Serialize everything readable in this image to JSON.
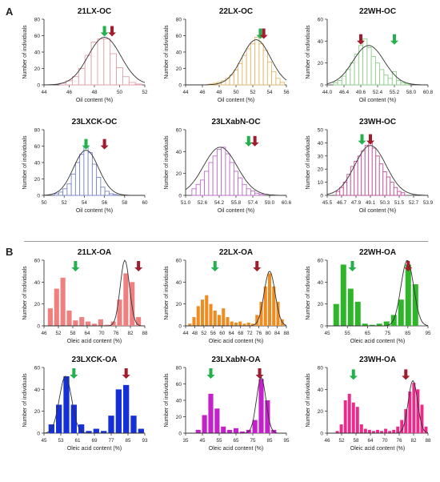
{
  "panels": [
    {
      "letter": "A"
    },
    {
      "letter": "B"
    }
  ],
  "chart_data": [
    {
      "type": "bar",
      "title": "21LX-OC",
      "xlabel": "Oil content (%)",
      "ylabel": "Number of individuals",
      "style": "outline",
      "color": "#e0a0a8",
      "x_ticks": [
        "44",
        "46",
        "48",
        "50",
        "52"
      ],
      "x_min": 44,
      "x_max": 52,
      "bin_width": 0.5,
      "bin_centers": [
        45.5,
        46.0,
        46.5,
        47.0,
        47.5,
        48.0,
        48.5,
        49.0,
        49.5,
        50.0,
        50.5,
        51.0,
        51.5
      ],
      "values": [
        2,
        5,
        10,
        20,
        36,
        52,
        56,
        56,
        38,
        21,
        10,
        3,
        1
      ],
      "ylim": [
        0,
        80
      ],
      "y_ticks": [
        0,
        20,
        40,
        60,
        80
      ],
      "curve": {
        "mean": 48.8,
        "sd": 1.3,
        "peak": 58
      },
      "green_arrow_x": 48.8,
      "red_arrow_x": 49.4
    },
    {
      "type": "bar",
      "title": "22LX-OC",
      "xlabel": "Oil content (%)",
      "ylabel": "Number of individuals",
      "style": "outline",
      "color": "#e3b76a",
      "x_ticks": [
        "44",
        "46",
        "48",
        "50",
        "52",
        "54",
        "56"
      ],
      "x_min": 44,
      "x_max": 56,
      "bin_width": 0.5,
      "bin_centers": [
        47.0,
        47.5,
        48.0,
        48.5,
        49.0,
        49.5,
        50.0,
        50.5,
        51.0,
        51.5,
        52.0,
        52.5,
        53.0,
        53.5,
        54.0,
        54.5,
        55.0,
        55.5
      ],
      "values": [
        1,
        2,
        3,
        5,
        8,
        12,
        18,
        26,
        36,
        44,
        50,
        58,
        50,
        42,
        28,
        16,
        8,
        3
      ],
      "ylim": [
        0,
        80
      ],
      "y_ticks": [
        0,
        20,
        40,
        60,
        80
      ],
      "curve": {
        "mean": 52.4,
        "sd": 1.7,
        "peak": 55
      },
      "green_arrow_x": 52.9,
      "red_arrow_x": 53.3
    },
    {
      "type": "bar",
      "title": "22WH-OC",
      "xlabel": "Oil content (%)",
      "ylabel": "Number of individuals",
      "style": "outline",
      "color": "#8fce8a",
      "x_ticks": [
        "44.0",
        "46.4",
        "48.8",
        "51.2",
        "53.6",
        "56.0",
        "58.4",
        "60.8"
      ],
      "x_ticks_shown": [
        "44.0",
        "46.4",
        "49.6",
        "52.4",
        "55.2",
        "58.0",
        "60.8"
      ],
      "x_min": 44.0,
      "x_max": 60.8,
      "bin_width": 0.7,
      "bin_centers": [
        45.4,
        46.1,
        46.8,
        47.5,
        48.2,
        48.9,
        49.6,
        50.3,
        51.0,
        51.7,
        52.4,
        53.1,
        53.8,
        54.5,
        55.2,
        55.9,
        56.6,
        57.3
      ],
      "values": [
        2,
        4,
        8,
        14,
        20,
        28,
        36,
        42,
        34,
        26,
        20,
        14,
        9,
        6,
        12,
        4,
        2,
        1
      ],
      "ylim": [
        0,
        60
      ],
      "y_ticks": [
        0,
        20,
        40,
        60
      ],
      "curve": {
        "mean": 50.9,
        "sd": 2.6,
        "peak": 36
      },
      "green_arrow_x": 55.2,
      "red_arrow_x": 49.6
    },
    {
      "type": "bar",
      "title": "23LXCK-OC",
      "xlabel": "Oil content (%)",
      "ylabel": "Number of individuals",
      "style": "outline",
      "color": "#7b86c8",
      "x_ticks": [
        "50",
        "52",
        "54",
        "56",
        "58",
        "60"
      ],
      "x_min": 49,
      "x_max": 61,
      "bin_width": 0.5,
      "bin_centers": [
        50.5,
        51.0,
        51.5,
        52.0,
        52.5,
        53.0,
        53.5,
        54.0,
        54.5,
        55.0,
        55.5,
        56.0,
        56.5,
        57.0,
        57.5
      ],
      "values": [
        2,
        4,
        8,
        14,
        26,
        40,
        50,
        60,
        52,
        38,
        22,
        10,
        5,
        2,
        1
      ],
      "ylim": [
        0,
        80
      ],
      "y_ticks": [
        0,
        20,
        40,
        60,
        80
      ],
      "curve": {
        "mean": 54.0,
        "sd": 1.5,
        "peak": 55
      },
      "green_arrow_x": 54.0,
      "red_arrow_x": 56.2
    },
    {
      "type": "bar",
      "title": "23LXabN-OC",
      "xlabel": "Oil content (%)",
      "ylabel": "Number of individuals",
      "style": "outline",
      "color": "#bb6fc9",
      "x_ticks": [
        "51.0",
        "52.6",
        "54.2",
        "55.8",
        "57.4",
        "59.0",
        "60.6"
      ],
      "x_min": 51.0,
      "x_max": 60.6,
      "bin_width": 0.4,
      "bin_centers": [
        51.8,
        52.2,
        52.6,
        53.0,
        53.4,
        53.8,
        54.2,
        54.6,
        55.0,
        55.4,
        55.8,
        56.2,
        56.6,
        57.0,
        57.4,
        57.8,
        58.2
      ],
      "values": [
        6,
        10,
        14,
        22,
        30,
        36,
        42,
        44,
        38,
        30,
        22,
        16,
        10,
        6,
        4,
        2,
        1
      ],
      "ylim": [
        0,
        60
      ],
      "y_ticks": [
        0,
        20,
        40,
        60
      ],
      "curve": {
        "mean": 54.3,
        "sd": 1.6,
        "peak": 44
      },
      "green_arrow_x": 57.0,
      "red_arrow_x": 57.6
    },
    {
      "type": "bar",
      "title": "23WH-OC",
      "xlabel": "Oil content (%)",
      "ylabel": "Number of individuals",
      "style": "outline",
      "color": "#c0509a",
      "x_ticks": [
        "45.5",
        "46.7",
        "47.9",
        "49.1",
        "50.3",
        "51.5",
        "52.7",
        "53.9"
      ],
      "x_min": 45.5,
      "x_max": 53.9,
      "bin_width": 0.3,
      "bin_centers": [
        46.4,
        46.7,
        47.0,
        47.3,
        47.6,
        47.9,
        48.2,
        48.5,
        48.8,
        49.1,
        49.4,
        49.7,
        50.0,
        50.3,
        50.6,
        50.9,
        51.2,
        51.5,
        51.8
      ],
      "values": [
        3,
        6,
        10,
        16,
        22,
        26,
        30,
        34,
        38,
        40,
        36,
        30,
        24,
        18,
        14,
        10,
        6,
        3,
        2
      ],
      "ylim": [
        0,
        50
      ],
      "y_ticks": [
        0,
        10,
        20,
        30,
        40,
        50
      ],
      "curve": {
        "mean": 49.1,
        "sd": 1.3,
        "peak": 38
      },
      "green_arrow_x": 48.4,
      "red_arrow_x": 49.1
    },
    {
      "type": "bar",
      "title": "21LX-OA",
      "xlabel": "Oleic acid content (%)",
      "ylabel": "Number of individuals",
      "style": "filled",
      "color": "#ee8080",
      "x_ticks": [
        "46",
        "52",
        "58",
        "64",
        "70",
        "76",
        "82",
        "88"
      ],
      "x_min": 43,
      "x_max": 91,
      "bin_width": 3,
      "bin_centers": [
        46,
        49,
        52,
        55,
        58,
        61,
        64,
        67,
        70,
        73,
        76,
        79,
        82,
        85,
        88
      ],
      "values": [
        16,
        34,
        44,
        14,
        5,
        8,
        4,
        2,
        6,
        1,
        4,
        24,
        48,
        40,
        8
      ],
      "ylim": [
        0,
        60
      ],
      "y_ticks": [
        0,
        20,
        40,
        60
      ],
      "curve": {
        "mean": 81.5,
        "sd": 2.2,
        "peak": 60
      },
      "green_arrow_x": 58,
      "red_arrow_x": 88
    },
    {
      "type": "bar",
      "title": "22LX-OA",
      "xlabel": "Oleic acid content (%)",
      "ylabel": "Number of individuals",
      "style": "filled",
      "color": "#ee8c22",
      "x_ticks": [
        "44",
        "50",
        "56",
        "62",
        "68",
        "74",
        "80",
        "86",
        "92"
      ],
      "x_ticks_shown": [
        "44",
        "48",
        "52",
        "56",
        "60",
        "64",
        "68",
        "72",
        "76",
        "80",
        "84",
        "88"
      ],
      "x_min": 42,
      "x_max": 90,
      "bin_width": 2,
      "bin_centers": [
        44,
        46,
        48,
        50,
        52,
        54,
        56,
        58,
        60,
        62,
        64,
        66,
        68,
        70,
        72,
        74,
        76,
        78,
        80,
        82,
        84,
        86,
        88
      ],
      "values": [
        2,
        8,
        18,
        24,
        28,
        20,
        14,
        10,
        16,
        8,
        4,
        3,
        4,
        2,
        3,
        2,
        10,
        22,
        36,
        48,
        36,
        22,
        6
      ],
      "ylim": [
        0,
        60
      ],
      "y_ticks": [
        0,
        20,
        40,
        60
      ],
      "curve": {
        "mean": 82,
        "sd": 2.6,
        "peak": 50
      },
      "green_arrow_x": 56,
      "red_arrow_x": 76
    },
    {
      "type": "bar",
      "title": "22WH-OA",
      "xlabel": "Oleic acid content (%)",
      "ylabel": "Number of individuals",
      "style": "filled",
      "color": "#2fb52a",
      "x_ticks": [
        "45",
        "55",
        "65",
        "75",
        "85",
        "95"
      ],
      "x_min": 40,
      "x_max": 96,
      "bin_width": 4,
      "bin_centers": [
        45,
        49,
        53,
        57,
        61,
        65,
        69,
        73,
        77,
        81,
        85,
        89
      ],
      "values": [
        20,
        56,
        34,
        22,
        2,
        1,
        2,
        4,
        10,
        24,
        56,
        38
      ],
      "ylim": [
        0,
        60
      ],
      "y_ticks": [
        0,
        20,
        40,
        60
      ],
      "curve": {
        "mean": 84.5,
        "sd": 3.5,
        "peak": 60
      },
      "green_arrow_x": 54,
      "red_arrow_x": 85
    },
    {
      "type": "bar",
      "title": "23LXCK-OA",
      "xlabel": "Oleic acid content (%)",
      "ylabel": "Number of individuals",
      "style": "filled",
      "color": "#1530d8",
      "x_ticks": [
        "45",
        "53",
        "61",
        "69",
        "77",
        "85",
        "93"
      ],
      "x_min": 41,
      "x_max": 95,
      "bin_width": 4,
      "bin_centers": [
        45,
        49,
        53,
        57,
        61,
        65,
        69,
        73,
        77,
        81,
        85,
        89,
        93
      ],
      "values": [
        8,
        26,
        52,
        26,
        8,
        2,
        4,
        2,
        16,
        40,
        44,
        16,
        4
      ],
      "ylim": [
        0,
        60
      ],
      "y_ticks": [
        0,
        20,
        40,
        60
      ],
      "curve": {
        "mean": 52.5,
        "sd": 3.3,
        "peak": 52
      },
      "green_arrow_x": 57,
      "red_arrow_x": 85
    },
    {
      "type": "bar",
      "title": "23LXabN-OA",
      "xlabel": "Oleic acid content (%)",
      "ylabel": "Number of individuals",
      "style": "filled",
      "color": "#c521cb",
      "x_ticks": [
        "35",
        "45",
        "55",
        "65",
        "75",
        "85",
        "95"
      ],
      "x_min": 33,
      "x_max": 97,
      "bin_width": 4,
      "bin_centers": [
        41,
        45,
        49,
        53,
        57,
        61,
        65,
        69,
        73,
        77,
        81,
        85,
        89
      ],
      "values": [
        4,
        22,
        48,
        30,
        8,
        4,
        6,
        2,
        4,
        16,
        66,
        40,
        4
      ],
      "ylim": [
        0,
        80
      ],
      "y_ticks": [
        0,
        20,
        40,
        60,
        80
      ],
      "curve": {
        "mean": 81,
        "sd": 3.0,
        "peak": 68
      },
      "green_arrow_x": 49,
      "red_arrow_x": 80
    },
    {
      "type": "bar",
      "title": "23WH-OA",
      "xlabel": "Oleic acid content (%)",
      "ylabel": "Number of individuals",
      "style": "filled",
      "color": "#ec2a8b",
      "x_ticks": [
        "46",
        "52",
        "58",
        "64",
        "70",
        "76",
        "82",
        "88"
      ],
      "x_min": 43,
      "x_max": 93,
      "bin_width": 2,
      "bin_centers": [
        48,
        50,
        52,
        54,
        56,
        58,
        60,
        62,
        64,
        66,
        68,
        70,
        72,
        74,
        76,
        78,
        80,
        82,
        84,
        86,
        88,
        90,
        92
      ],
      "values": [
        2,
        8,
        30,
        36,
        28,
        24,
        8,
        4,
        3,
        2,
        3,
        2,
        4,
        2,
        3,
        6,
        12,
        22,
        38,
        46,
        40,
        26,
        6
      ],
      "ylim": [
        0,
        60
      ],
      "y_ticks": [
        0,
        20,
        40,
        60
      ],
      "curve": {
        "mean": 85.5,
        "sd": 2.3,
        "peak": 48
      },
      "green_arrow_x": 56,
      "red_arrow_x": 82
    }
  ]
}
